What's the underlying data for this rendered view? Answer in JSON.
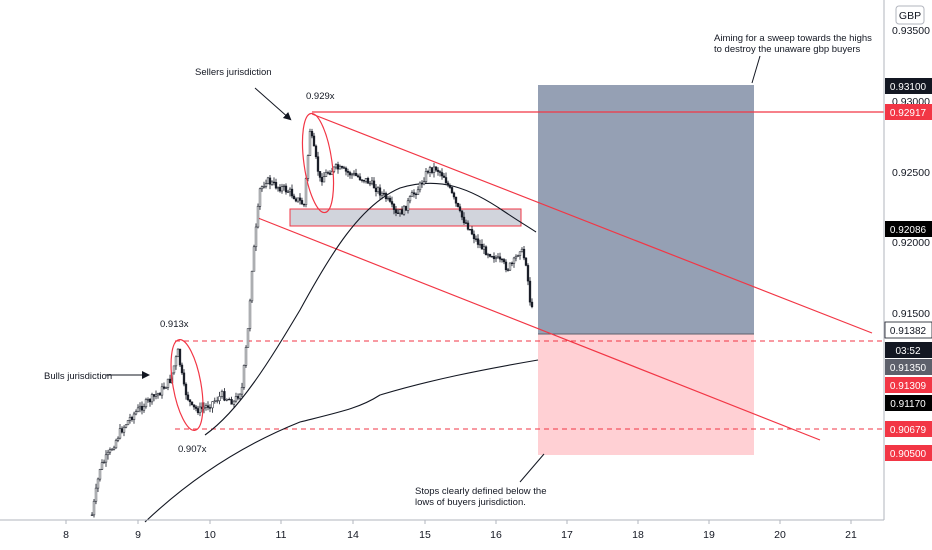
{
  "chart_data": {
    "type": "candlestick",
    "currency": "GBP",
    "price_axis": {
      "ticks": [
        "0.93500",
        "0.93000",
        "0.92500",
        "0.92000",
        "0.91500"
      ],
      "range": [
        0.8985,
        0.9365
      ]
    },
    "time_axis": {
      "ticks": [
        "8",
        "9",
        "10",
        "11",
        "14",
        "15",
        "16",
        "17",
        "18",
        "19",
        "20",
        "21"
      ]
    },
    "price_labels": [
      {
        "value": "0.93100",
        "color": "#131722",
        "text_color": "#ffffff"
      },
      {
        "value": "0.92917",
        "color": "#f23645",
        "text_color": "#ffffff"
      },
      {
        "value": "0.92086",
        "color": "#000000",
        "text_color": "#ffffff"
      },
      {
        "value": "0.91382",
        "color": "#ffffff",
        "text_color": "#131722"
      },
      {
        "value": "03:52",
        "color": "#131722",
        "text_color": "#ffffff"
      },
      {
        "value": "0.91350",
        "color": "#5d606b",
        "text_color": "#ffffff"
      },
      {
        "value": "0.91309",
        "color": "#f23645",
        "text_color": "#ffffff"
      },
      {
        "value": "0.91170",
        "color": "#000000",
        "text_color": "#ffffff"
      },
      {
        "value": "0.90679",
        "color": "#f23645",
        "text_color": "#ffffff"
      },
      {
        "value": "0.90500",
        "color": "#f23645",
        "text_color": "#ffffff"
      }
    ],
    "levels": {
      "entry": 0.91382,
      "target": 0.931,
      "stop": 0.905,
      "high_line": 0.92917,
      "dashed_high": 0.91309,
      "dashed_low": 0.90679,
      "zone_top": 0.9221,
      "zone_bottom": 0.921
    },
    "annotations": {
      "sellers": "Sellers jurisdiction",
      "high_value": "0.929x",
      "bulls": "Bulls jurisdiction",
      "mid_high_value": "0.913x",
      "low_value": "0.907x",
      "target_note_line1": "Aiming for a sweep towards the highs",
      "target_note_line2": "to destroy the unaware gbp buyers",
      "stop_note_line1": "Stops clearly defined below the",
      "stop_note_line2": "lows of buyers jurisdiction."
    },
    "colors": {
      "profit_zone": "#8f9bb0",
      "loss_zone": "#ffcdd2",
      "trend_lines": "#f23645",
      "candles": "#131722"
    },
    "grid": false
  }
}
